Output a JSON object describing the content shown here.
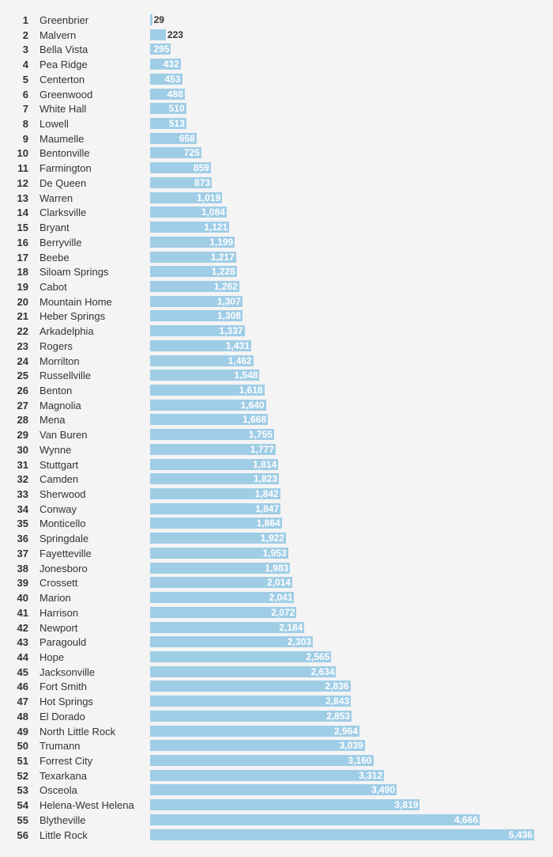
{
  "chart_data": {
    "type": "bar",
    "orientation": "horizontal",
    "bar_color": "#a0cde6",
    "background": "#f4f4f4",
    "rows": [
      {
        "rank": "1",
        "city": "Greenbrier",
        "value": 29,
        "label": "29"
      },
      {
        "rank": "2",
        "city": "Malvern",
        "value": 223,
        "label": "223"
      },
      {
        "rank": "3",
        "city": "Bella Vista",
        "value": 295,
        "label": "295"
      },
      {
        "rank": "4",
        "city": "Pea Ridge",
        "value": 432,
        "label": "432"
      },
      {
        "rank": "5",
        "city": "Centerton",
        "value": 453,
        "label": "453"
      },
      {
        "rank": "6",
        "city": "Greenwood",
        "value": 488,
        "label": "488"
      },
      {
        "rank": "7",
        "city": "White Hall",
        "value": 510,
        "label": "510"
      },
      {
        "rank": "8",
        "city": "Lowell",
        "value": 513,
        "label": "513"
      },
      {
        "rank": "9",
        "city": "Maumelle",
        "value": 658,
        "label": "658"
      },
      {
        "rank": "10",
        "city": "Bentonville",
        "value": 725,
        "label": "725"
      },
      {
        "rank": "11",
        "city": "Farmington",
        "value": 859,
        "label": "859"
      },
      {
        "rank": "12",
        "city": "De Queen",
        "value": 873,
        "label": "873"
      },
      {
        "rank": "13",
        "city": "Warren",
        "value": 1019,
        "label": "1,019"
      },
      {
        "rank": "14",
        "city": "Clarksville",
        "value": 1084,
        "label": "1,084"
      },
      {
        "rank": "15",
        "city": "Bryant",
        "value": 1121,
        "label": "1,121"
      },
      {
        "rank": "16",
        "city": "Berryville",
        "value": 1199,
        "label": "1,199"
      },
      {
        "rank": "17",
        "city": "Beebe",
        "value": 1217,
        "label": "1,217"
      },
      {
        "rank": "18",
        "city": "Siloam Springs",
        "value": 1228,
        "label": "1,228"
      },
      {
        "rank": "19",
        "city": "Cabot",
        "value": 1262,
        "label": "1,262"
      },
      {
        "rank": "20",
        "city": "Mountain Home",
        "value": 1307,
        "label": "1,307"
      },
      {
        "rank": "21",
        "city": "Heber Springs",
        "value": 1308,
        "label": "1,308"
      },
      {
        "rank": "22",
        "city": "Arkadelphia",
        "value": 1337,
        "label": "1,337"
      },
      {
        "rank": "23",
        "city": "Rogers",
        "value": 1431,
        "label": "1,431"
      },
      {
        "rank": "24",
        "city": "Morrilton",
        "value": 1462,
        "label": "1,462"
      },
      {
        "rank": "25",
        "city": "Russellville",
        "value": 1548,
        "label": "1,548"
      },
      {
        "rank": "26",
        "city": "Benton",
        "value": 1618,
        "label": "1,618"
      },
      {
        "rank": "27",
        "city": "Magnolia",
        "value": 1640,
        "label": "1,640"
      },
      {
        "rank": "28",
        "city": "Mena",
        "value": 1668,
        "label": "1,668"
      },
      {
        "rank": "29",
        "city": "Van Buren",
        "value": 1755,
        "label": "1,755"
      },
      {
        "rank": "30",
        "city": "Wynne",
        "value": 1777,
        "label": "1,777"
      },
      {
        "rank": "31",
        "city": "Stuttgart",
        "value": 1814,
        "label": "1,814"
      },
      {
        "rank": "32",
        "city": "Camden",
        "value": 1823,
        "label": "1,823"
      },
      {
        "rank": "33",
        "city": "Sherwood",
        "value": 1842,
        "label": "1,842"
      },
      {
        "rank": "34",
        "city": "Conway",
        "value": 1847,
        "label": "1,847"
      },
      {
        "rank": "35",
        "city": "Monticello",
        "value": 1864,
        "label": "1,864"
      },
      {
        "rank": "36",
        "city": "Springdale",
        "value": 1922,
        "label": "1,922"
      },
      {
        "rank": "37",
        "city": "Fayetteville",
        "value": 1953,
        "label": "1,953"
      },
      {
        "rank": "38",
        "city": "Jonesboro",
        "value": 1983,
        "label": "1,983"
      },
      {
        "rank": "39",
        "city": "Crossett",
        "value": 2014,
        "label": "2,014"
      },
      {
        "rank": "40",
        "city": "Marion",
        "value": 2041,
        "label": "2,041"
      },
      {
        "rank": "41",
        "city": "Harrison",
        "value": 2072,
        "label": "2,072"
      },
      {
        "rank": "42",
        "city": "Newport",
        "value": 2184,
        "label": "2,184"
      },
      {
        "rank": "43",
        "city": "Paragould",
        "value": 2303,
        "label": "2,303"
      },
      {
        "rank": "44",
        "city": "Hope",
        "value": 2565,
        "label": "2,565"
      },
      {
        "rank": "45",
        "city": "Jacksonville",
        "value": 2634,
        "label": "2,634"
      },
      {
        "rank": "46",
        "city": "Fort Smith",
        "value": 2836,
        "label": "2,836"
      },
      {
        "rank": "47",
        "city": "Hot Springs",
        "value": 2843,
        "label": "2,843"
      },
      {
        "rank": "48",
        "city": "El Dorado",
        "value": 2853,
        "label": "2,853"
      },
      {
        "rank": "49",
        "city": "North Little Rock",
        "value": 2964,
        "label": "2,964"
      },
      {
        "rank": "50",
        "city": "Trumann",
        "value": 3039,
        "label": "3,039"
      },
      {
        "rank": "51",
        "city": "Forrest City",
        "value": 3160,
        "label": "3,160"
      },
      {
        "rank": "52",
        "city": "Texarkana",
        "value": 3312,
        "label": "3,312"
      },
      {
        "rank": "53",
        "city": "Osceola",
        "value": 3490,
        "label": "3,490"
      },
      {
        "rank": "54",
        "city": "Helena-West Helena",
        "value": 3819,
        "label": "3,819"
      },
      {
        "rank": "55",
        "city": "Blytheville",
        "value": 4666,
        "label": "4,666"
      },
      {
        "rank": "56",
        "city": "Little Rock",
        "value": 5436,
        "label": "5,436"
      }
    ]
  }
}
